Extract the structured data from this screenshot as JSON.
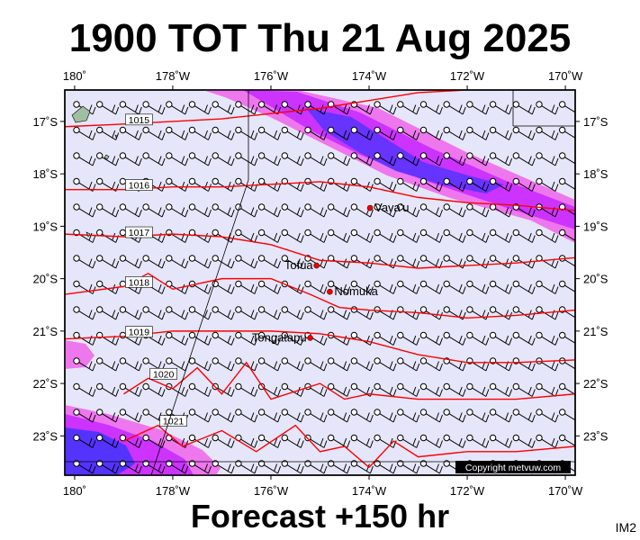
{
  "header": {
    "title": "1900 TOT Thu 21 Aug 2025"
  },
  "footer": {
    "forecast": "Forecast +150 hr",
    "badge": "IM2",
    "copyright": "Copyright metvuw.com"
  },
  "colors": {
    "background": "#e6e6fa",
    "isobar": "#ff0000",
    "rain_light": "#ee66ee",
    "rain_mid": "#cc33ff",
    "rain_heavy": "#5533ff"
  },
  "map": {
    "lon_range": [
      180.2,
      169.8
    ],
    "lat_range": [
      -16.4,
      -23.75
    ],
    "lon_ticks": [
      {
        "lon": 180,
        "label": "180˚"
      },
      {
        "lon": 178,
        "label": "178˚W"
      },
      {
        "lon": 176,
        "label": "176˚W"
      },
      {
        "lon": 174,
        "label": "174˚W"
      },
      {
        "lon": 172,
        "label": "172˚W"
      },
      {
        "lon": 170,
        "label": "170˚W"
      }
    ],
    "lat_ticks": [
      {
        "lat": -17,
        "label": "17˚S"
      },
      {
        "lat": -18,
        "label": "18˚S"
      },
      {
        "lat": -19,
        "label": "19˚S"
      },
      {
        "lat": -20,
        "label": "20˚S"
      },
      {
        "lat": -21,
        "label": "21˚S"
      },
      {
        "lat": -22,
        "label": "22˚S"
      },
      {
        "lat": -23,
        "label": "23˚S"
      }
    ],
    "places": [
      {
        "name": "Vava'u",
        "lon": 173.98,
        "lat": -18.65
      },
      {
        "name": "Tofua",
        "lon": 175.07,
        "lat": -19.75
      },
      {
        "name": "Nomuka",
        "lon": 174.8,
        "lat": -20.25
      },
      {
        "name": "Tongatapu",
        "lon": 175.2,
        "lat": -21.13
      }
    ],
    "isobars": [
      {
        "label": "1015",
        "points": [
          [
            180.2,
            -17.1
          ],
          [
            179,
            -17.05
          ],
          [
            178,
            -17.0
          ],
          [
            177,
            -16.95
          ],
          [
            176,
            -16.85
          ],
          [
            175,
            -16.75
          ],
          [
            174,
            -16.6
          ],
          [
            173,
            -16.45
          ],
          [
            172,
            -16.4
          ]
        ]
      },
      {
        "label": "1016",
        "points": [
          [
            180.2,
            -18.3
          ],
          [
            179,
            -18.3
          ],
          [
            178,
            -18.25
          ],
          [
            177,
            -18.25
          ],
          [
            176,
            -18.2
          ],
          [
            175,
            -18.15
          ],
          [
            174,
            -18.25
          ],
          [
            173,
            -18.45
          ],
          [
            172,
            -18.55
          ],
          [
            171,
            -18.6
          ],
          [
            169.8,
            -18.7
          ]
        ]
      },
      {
        "label": "1017",
        "points": [
          [
            180.2,
            -19.15
          ],
          [
            179,
            -19.2
          ],
          [
            178,
            -19.15
          ],
          [
            177,
            -19.2
          ],
          [
            176,
            -19.35
          ],
          [
            175,
            -19.65
          ],
          [
            174,
            -19.7
          ],
          [
            173,
            -19.8
          ],
          [
            172,
            -19.75
          ],
          [
            171,
            -19.7
          ],
          [
            169.8,
            -19.6
          ]
        ]
      },
      {
        "label": "1018",
        "points": [
          [
            180.2,
            -20.3
          ],
          [
            179,
            -20.15
          ],
          [
            178.5,
            -19.9
          ],
          [
            178,
            -20.2
          ],
          [
            177,
            -20.0
          ],
          [
            176,
            -20.0
          ],
          [
            175.2,
            -20.3
          ],
          [
            174.6,
            -20.55
          ],
          [
            174,
            -20.6
          ],
          [
            173,
            -20.65
          ],
          [
            172,
            -20.75
          ],
          [
            171,
            -20.7
          ],
          [
            169.8,
            -20.6
          ]
        ]
      },
      {
        "label": "1019",
        "points": [
          [
            180.2,
            -21.15
          ],
          [
            179,
            -21.1
          ],
          [
            178,
            -21.0
          ],
          [
            177,
            -21.0
          ],
          [
            176,
            -21.0
          ],
          [
            175,
            -21.05
          ],
          [
            174,
            -21.2
          ],
          [
            173,
            -21.45
          ],
          [
            172,
            -21.6
          ],
          [
            171,
            -21.6
          ],
          [
            169.8,
            -21.55
          ]
        ]
      },
      {
        "label": "1020",
        "points": [
          [
            179,
            -22.2
          ],
          [
            178.5,
            -21.9
          ],
          [
            178,
            -22.1
          ],
          [
            177.5,
            -21.7
          ],
          [
            177,
            -22.2
          ],
          [
            176.5,
            -21.6
          ],
          [
            176,
            -22.3
          ],
          [
            175,
            -22.0
          ],
          [
            174.5,
            -22.3
          ],
          [
            174,
            -22.2
          ],
          [
            173,
            -22.3
          ],
          [
            172,
            -22.3
          ],
          [
            171,
            -22.3
          ],
          [
            169.8,
            -22.2
          ]
        ]
      },
      {
        "label": "1021",
        "points": [
          [
            179,
            -23.1
          ],
          [
            178.3,
            -22.8
          ],
          [
            177.8,
            -23.2
          ],
          [
            177,
            -22.9
          ],
          [
            176.3,
            -23.3
          ],
          [
            175.5,
            -22.8
          ],
          [
            175,
            -23.3
          ],
          [
            174.5,
            -23.2
          ],
          [
            174,
            -23.6
          ],
          [
            173.5,
            -23.1
          ],
          [
            173,
            -23.4
          ],
          [
            172,
            -23.3
          ],
          [
            171,
            -23.3
          ],
          [
            169.8,
            -23.2
          ]
        ]
      }
    ]
  }
}
